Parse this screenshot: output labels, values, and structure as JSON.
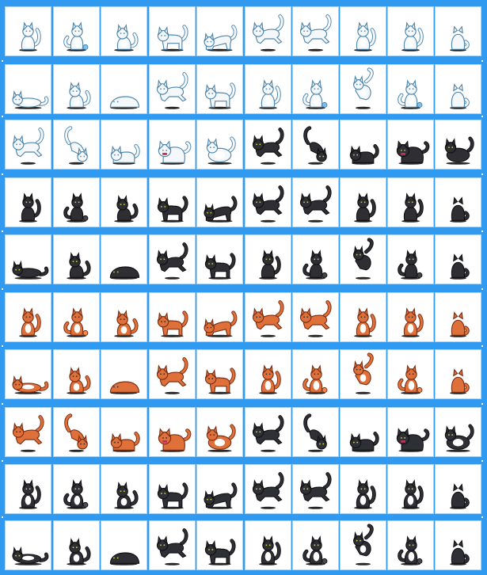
{
  "sheet": {
    "background_color": "#2f9af0",
    "cell_color": "#ffffff",
    "cell_border_color": "#a9d6f8",
    "columns": 10,
    "rows": [
      {
        "variant": "white",
        "poses": [
          "sit-tall",
          "sit-play",
          "sit-lick",
          "walk",
          "stretch",
          "jump",
          "leap",
          "sit-front",
          "sit-side",
          "sit-back"
        ]
      },
      {
        "variant": "white",
        "poses": [
          "lie-belly",
          "sit-tail",
          "loaf",
          "pounce",
          "walk",
          "sit-front",
          "sit-play",
          "spin",
          "sit-ball",
          "sit-back"
        ]
      },
      {
        "variant": "white",
        "poses": [
          "leap",
          "leap-high",
          "crouch",
          "hiss",
          "roll",
          "leap",
          "leap-high",
          "crouch",
          "hiss",
          "roll"
        ],
        "variant_split": [
          "white",
          "white",
          "white",
          "white",
          "white",
          "black",
          "black",
          "black",
          "black",
          "black"
        ]
      },
      {
        "variant": "black",
        "poses": [
          "sit-tall",
          "sit-play",
          "sit-lick",
          "walk",
          "stretch",
          "jump",
          "leap",
          "sit-front",
          "sit-side",
          "sit-back"
        ]
      },
      {
        "variant": "black",
        "poses": [
          "lie-belly",
          "sit-tail",
          "loaf",
          "pounce",
          "walk",
          "sit-front",
          "sit-play",
          "spin",
          "sit-ball",
          "sit-back"
        ]
      },
      {
        "variant": "orange",
        "poses": [
          "sit-tall",
          "sit-play",
          "sit-lick",
          "walk",
          "stretch",
          "jump",
          "leap",
          "sit-front",
          "sit-side",
          "sit-back"
        ]
      },
      {
        "variant": "orange",
        "poses": [
          "lie-belly",
          "sit-tail",
          "loaf",
          "pounce",
          "walk",
          "sit-front",
          "sit-play",
          "spin",
          "sit-ball",
          "sit-back"
        ]
      },
      {
        "variant": "orange",
        "poses": [
          "leap",
          "leap-high",
          "crouch",
          "hiss",
          "roll",
          "leap",
          "leap-high",
          "crouch",
          "hiss",
          "roll"
        ],
        "variant_split": [
          "orange",
          "orange",
          "orange",
          "orange",
          "orange",
          "tuxedo",
          "tuxedo",
          "tuxedo",
          "tuxedo",
          "tuxedo"
        ]
      },
      {
        "variant": "tuxedo",
        "poses": [
          "sit-tall",
          "sit-play",
          "sit-lick",
          "walk",
          "stretch",
          "jump",
          "leap",
          "sit-front",
          "sit-side",
          "sit-back"
        ]
      },
      {
        "variant": "tuxedo",
        "poses": [
          "lie-belly",
          "sit-tail",
          "loaf",
          "pounce",
          "walk",
          "sit-front",
          "sit-play",
          "spin",
          "sit-ball",
          "sit-back"
        ]
      }
    ]
  },
  "palettes": {
    "white": {
      "body": "#f4f8fb",
      "shade": "#b9d8ee",
      "accent": "#7cc0ec",
      "line": "#4f86ad",
      "eye": "#4f86ad",
      "chest": "#ffffff"
    },
    "black": {
      "body": "#2e2e33",
      "shade": "#1c1c20",
      "accent": "#45454c",
      "line": "#111114",
      "eye": "#c8d84a",
      "chest": "#2e2e33"
    },
    "orange": {
      "body": "#e0703a",
      "shade": "#b8502a",
      "accent": "#f08c50",
      "line": "#7a2e14",
      "eye": "#2a2a2a",
      "chest": "#ffffff"
    },
    "tuxedo": {
      "body": "#2f2f36",
      "shade": "#1e1e23",
      "accent": "#4a4a52",
      "line": "#121215",
      "eye": "#d6e05a",
      "chest": "#ffffff"
    }
  }
}
